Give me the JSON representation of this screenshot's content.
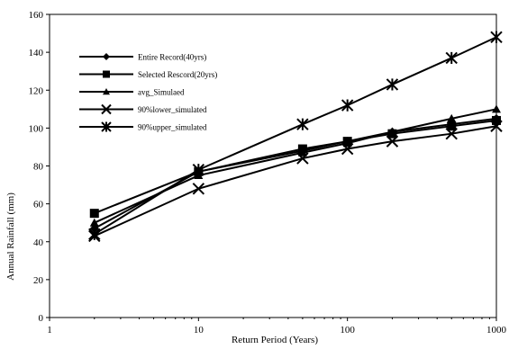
{
  "chart_data": {
    "type": "line",
    "title": "",
    "xlabel": "Return Period (Years)",
    "ylabel": "Annual Rainfall (mm)",
    "x_scale": "log",
    "xlim": [
      1,
      1000
    ],
    "ylim": [
      0,
      160
    ],
    "x_ticks": [
      1,
      10,
      100,
      1000
    ],
    "x_tick_labels": [
      "1",
      "10",
      "100",
      "1000"
    ],
    "y_ticks": [
      0,
      20,
      40,
      60,
      80,
      100,
      120,
      140,
      160
    ],
    "y_tick_labels": [
      "0",
      "20",
      "40",
      "60",
      "80",
      "100",
      "120",
      "140",
      "160"
    ],
    "grid": false,
    "legend_position": "top-left",
    "line_color": "#000000",
    "series": [
      {
        "name": "Entire Record(40yrs)",
        "marker": "diamond",
        "x": [
          2,
          10,
          50,
          100,
          200,
          500,
          1000
        ],
        "y": [
          47,
          77,
          88,
          93,
          98,
          102,
          105
        ]
      },
      {
        "name": "Selected Rescord(20yrs)",
        "marker": "square",
        "x": [
          2,
          10,
          50,
          100,
          200,
          500,
          1000
        ],
        "y": [
          55,
          77,
          89,
          93,
          97,
          101,
          104
        ]
      },
      {
        "name": "avg_Simulaed",
        "marker": "triangle",
        "x": [
          2,
          10,
          50,
          100,
          200,
          500,
          1000
        ],
        "y": [
          50,
          75,
          87,
          92,
          98,
          105,
          110
        ]
      },
      {
        "name": "90%lower_simulated",
        "marker": "x",
        "x": [
          2,
          10,
          50,
          100,
          200,
          500,
          1000
        ],
        "y": [
          43,
          68,
          84,
          89,
          93,
          97,
          101
        ]
      },
      {
        "name": "90%upper_simulated",
        "marker": "asterisk",
        "x": [
          2,
          10,
          50,
          100,
          200,
          500,
          1000
        ],
        "y": [
          44,
          78,
          102,
          112,
          123,
          137,
          148
        ]
      }
    ]
  }
}
